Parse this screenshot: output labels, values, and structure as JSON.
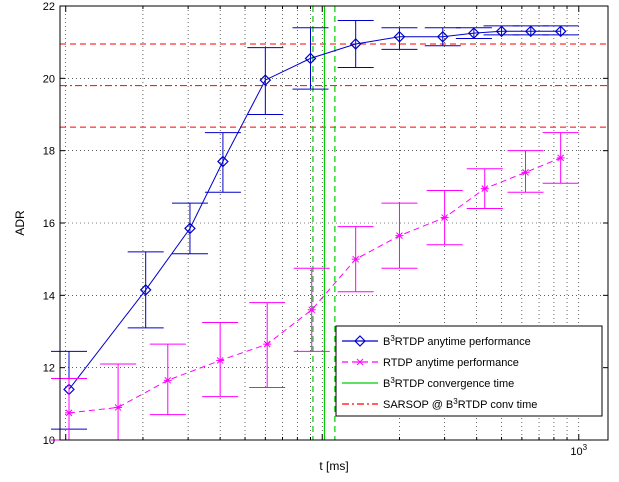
{
  "chart_data": {
    "type": "line",
    "xlabel": "t [ms]",
    "ylabel": "ADR",
    "xscale": "log",
    "xlim": [
      9.5,
      1300
    ],
    "ylim": [
      10,
      22
    ],
    "grid": true,
    "legend_position": "bottom-right",
    "x_tick_values": [
      1000
    ],
    "x_tick_labels": [
      "10^3"
    ],
    "y_ticks": [
      10,
      12,
      14,
      16,
      18,
      20,
      22
    ],
    "series": [
      {
        "name": "B^3RTDP anytime performance",
        "style": "solid",
        "marker": "diamond",
        "color": "#0000cc",
        "x": [
          10.3,
          20.5,
          30.5,
          41,
          60,
          90,
          135,
          200,
          295,
          390,
          500,
          650,
          850
        ],
        "y": [
          11.4,
          14.15,
          15.85,
          17.7,
          19.95,
          20.55,
          20.95,
          21.15,
          21.15,
          21.25,
          21.3,
          21.3,
          21.3
        ],
        "err_low": [
          10.3,
          13.1,
          15.15,
          16.85,
          19.0,
          19.7,
          20.3,
          20.8,
          20.9,
          21.1,
          21.2,
          21.2,
          21.2
        ],
        "err_high": [
          12.45,
          15.2,
          16.55,
          18.5,
          20.85,
          21.4,
          21.6,
          21.4,
          21.4,
          21.4,
          21.45,
          21.45,
          21.45
        ]
      },
      {
        "name": "RTDP anytime performance",
        "style": "dashed",
        "marker": "x",
        "color": "#ff00ff",
        "x": [
          10.3,
          16,
          25,
          40,
          61,
          91,
          135,
          200,
          300,
          430,
          620,
          850
        ],
        "y": [
          10.75,
          10.9,
          11.65,
          12.2,
          12.65,
          13.6,
          15.0,
          15.65,
          16.15,
          16.95,
          17.4,
          17.8
        ],
        "err_low": [
          10.0,
          10.0,
          10.7,
          11.2,
          11.45,
          12.45,
          14.1,
          14.75,
          15.4,
          16.4,
          16.85,
          17.1
        ],
        "err_high": [
          11.7,
          12.1,
          12.65,
          13.25,
          13.8,
          14.75,
          15.9,
          16.55,
          16.9,
          17.5,
          18.0,
          18.5
        ]
      }
    ],
    "vertical_lines": [
      {
        "name": "B^3RTDP convergence time",
        "x": 102,
        "style": "solid",
        "color": "#00cc00"
      },
      {
        "x": 92,
        "style": "dashed",
        "color": "#00cc00"
      },
      {
        "x": 112,
        "style": "dashed",
        "color": "#00cc00"
      }
    ],
    "horizontal_lines": [
      {
        "name": "SARSOP @ B^3RTDP conv time",
        "y": 19.8,
        "style": "dashdot",
        "color": "#ff0000"
      },
      {
        "y": 20.95,
        "style": "dashed",
        "color": "#ff0000"
      },
      {
        "y": 18.65,
        "style": "dashed",
        "color": "#ff0000"
      }
    ],
    "legend": [
      {
        "prefix": "B",
        "sup": "3",
        "suffix": "RTDP anytime performance"
      },
      {
        "prefix": "",
        "sup": "",
        "suffix": "RTDP anytime performance"
      },
      {
        "prefix": "B",
        "sup": "3",
        "suffix": "RTDP convergence time"
      },
      {
        "prefix": "SARSOP @ B",
        "sup": "3",
        "suffix": "RTDP conv time"
      }
    ]
  }
}
